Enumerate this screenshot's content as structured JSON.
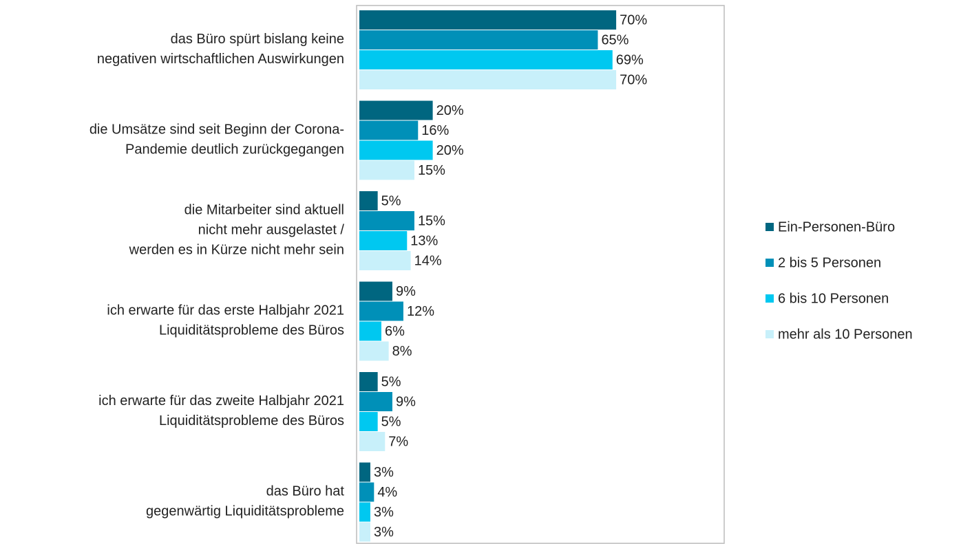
{
  "chart_data": {
    "type": "bar",
    "orientation": "horizontal",
    "categories": [
      "das Büro spürt bislang keine\nnegativen wirtschaftlichen Auswirkungen",
      "die Umsätze sind seit Beginn der Corona-\nPandemie deutlich zurückgegangen",
      "die Mitarbeiter sind aktuell\nnicht mehr ausgelastet /\nwerden es in Kürze nicht mehr sein",
      "ich erwarte für das erste Halbjahr 2021\nLiquiditätsprobleme des Büros",
      "ich erwarte für das zweite Halbjahr 2021\nLiquiditätsprobleme des Büros",
      "das Büro hat\ngegenwärtig Liquiditätsprobleme"
    ],
    "series": [
      {
        "name": "Ein-Personen-Büro",
        "color": "#006680",
        "values": [
          70,
          20,
          5,
          9,
          5,
          3
        ],
        "value_labels": [
          "70%",
          "20%",
          "5%",
          "9%",
          "5%",
          "3%"
        ]
      },
      {
        "name": "2 bis 5 Personen",
        "color": "#0090b8",
        "values": [
          65,
          16,
          15,
          12,
          9,
          4
        ],
        "value_labels": [
          "65%",
          "16%",
          "15%",
          "12%",
          "9%",
          "4%"
        ]
      },
      {
        "name": "6 bis 10 Personen",
        "color": "#00c8f0",
        "values": [
          69,
          20,
          13,
          6,
          5,
          3
        ],
        "value_labels": [
          "69%",
          "20%",
          "13%",
          "6%",
          "5%",
          "3%"
        ]
      },
      {
        "name": "mehr als 10 Personen",
        "color": "#c8f0fa",
        "values": [
          70,
          15,
          14,
          8,
          7,
          3
        ],
        "value_labels": [
          "70%",
          "15%",
          "14%",
          "8%",
          "7%",
          "3%"
        ]
      }
    ],
    "xlim": [
      0,
      100
    ],
    "legend": "right"
  }
}
